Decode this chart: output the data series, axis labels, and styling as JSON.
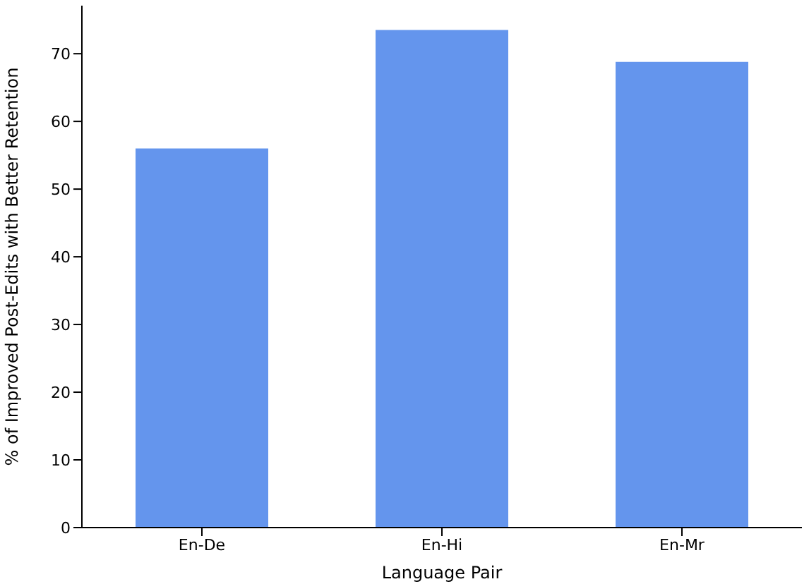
{
  "chart_data": {
    "type": "bar",
    "xlabel": "Language Pair",
    "ylabel": "% of Improved Post-Edits with Better Retention",
    "categories": [
      "En-De",
      "En-Hi",
      "En-Mr"
    ],
    "values": [
      56.0,
      73.5,
      68.8
    ],
    "color": "#6495ed",
    "ylim": [
      0,
      77.1
    ],
    "yticks": [
      0,
      10,
      20,
      30,
      40,
      50,
      60,
      70
    ],
    "grid": false,
    "legend": false
  }
}
